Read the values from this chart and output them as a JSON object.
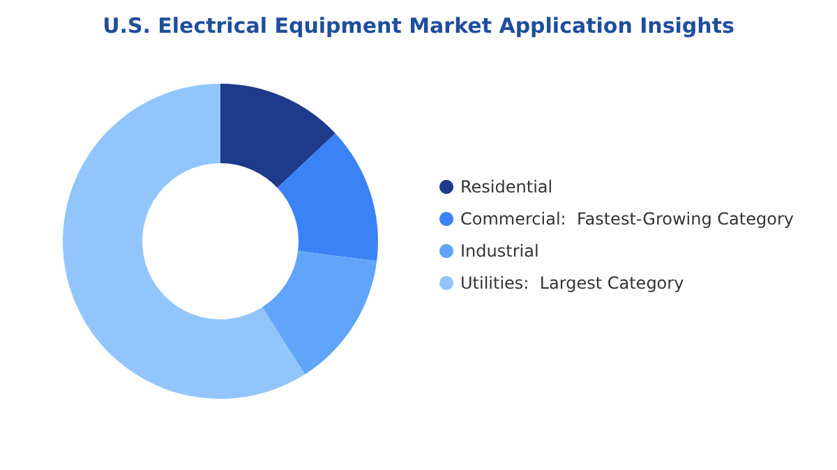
{
  "chart_data": {
    "type": "donut",
    "title": "U.S. Electrical Equipment Market Application Insights",
    "categories": [
      "Residential",
      "Commercial:  Fastest-Growing Category",
      "Industrial",
      "Utilities:  Largest Category"
    ],
    "values": [
      13,
      14,
      14,
      59
    ],
    "colors": [
      "#1e3a8a",
      "#3b82f6",
      "#60a5fa",
      "#93c5fd"
    ],
    "legend": "right"
  }
}
